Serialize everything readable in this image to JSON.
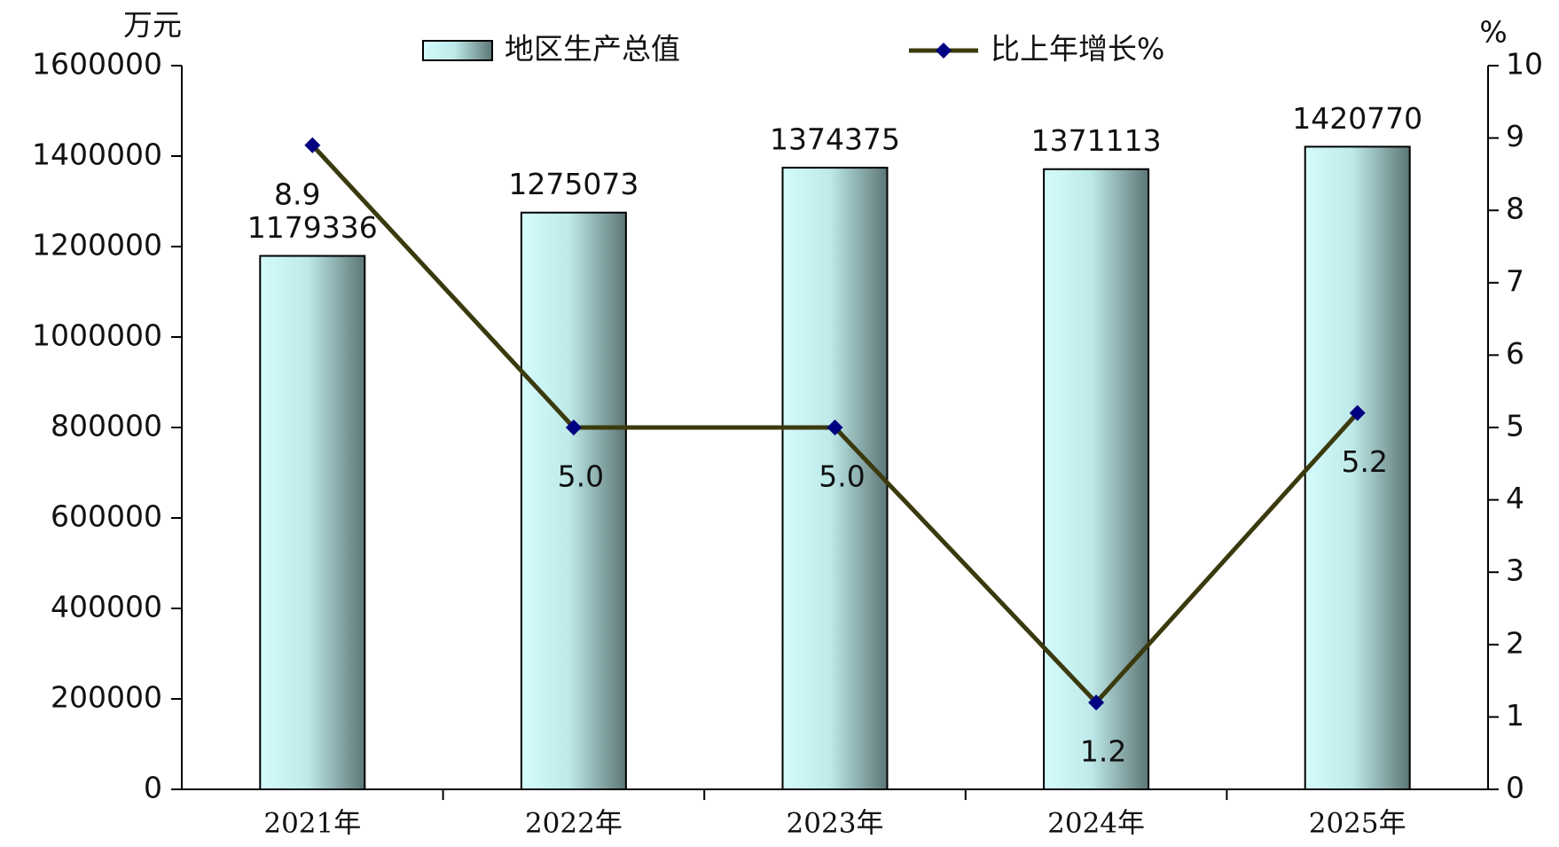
{
  "chart_data": {
    "type": "bar",
    "y_label": "万元",
    "y2_label": "%",
    "categories": [
      "2021年",
      "2022年",
      "2023年",
      "2024年",
      "2025年"
    ],
    "series": [
      {
        "name": "地区生产总值",
        "type": "bar",
        "color": "#c8f4f4",
        "values": [
          1179336,
          1275073,
          1374375,
          1371113,
          1420770
        ]
      },
      {
        "name": "比上年增长%",
        "type": "line",
        "axis": "y2",
        "color": "#3b3a0e",
        "marker_color": "#000080",
        "values": [
          8.9,
          5.0,
          5.0,
          1.2,
          5.2
        ],
        "value_labels": [
          "8.9",
          "5.0",
          "5.0",
          "1.2",
          "5.2"
        ]
      }
    ],
    "ylim": [
      0,
      1600000
    ],
    "yticks": [
      0,
      200000,
      400000,
      600000,
      800000,
      1000000,
      1200000,
      1400000,
      1600000
    ],
    "y2lim": [
      0,
      10
    ],
    "y2ticks": [
      0,
      1,
      2,
      3,
      4,
      5,
      6,
      7,
      8,
      9,
      10
    ],
    "grid": false
  }
}
